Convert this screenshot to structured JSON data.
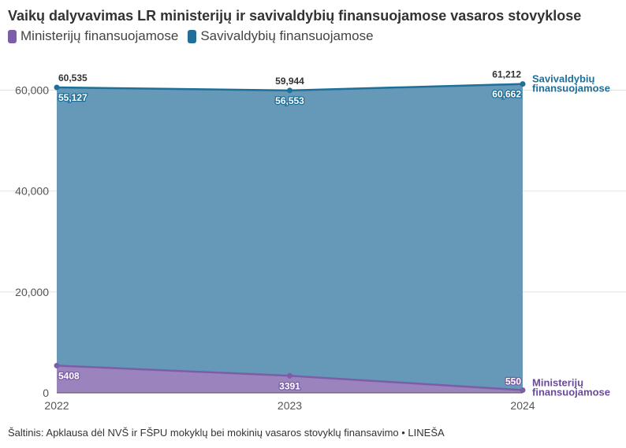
{
  "title": "Vaikų dalyvavimas LR ministerijų ir savivaldybių finansuojamose vasaros stovyklose",
  "legend": [
    {
      "label": "Ministerijų finansuojamose",
      "color": "#7b5ea7"
    },
    {
      "label": "Savivaldybių finansuojamose",
      "color": "#1f6f98"
    }
  ],
  "source": "Šaltinis: Apklausa dėl NVŠ ir FŠPU mokyklų bei mokinių vasaros stovyklų finansavimo • LINEŠA",
  "chart_data": {
    "type": "area",
    "stacked": true,
    "categories": [
      "2022",
      "2023",
      "2024"
    ],
    "series": [
      {
        "name": "Ministerijų finansuojamose",
        "values": [
          5408,
          3391,
          550
        ],
        "value_labels": [
          "5408",
          "3391",
          "550"
        ],
        "color": "#7b5ea7",
        "fill": "#9b84bd"
      },
      {
        "name": "Savivaldybių finansuojamose",
        "values": [
          55127,
          56553,
          60662
        ],
        "value_labels": [
          "55,127",
          "56,553",
          "60,662"
        ],
        "color": "#1f6f98",
        "fill": "#6698b8"
      }
    ],
    "totals": [
      60535,
      59944,
      61212
    ],
    "total_labels": [
      "60,535",
      "59,944",
      "61,212"
    ],
    "end_labels": [
      {
        "series": "Savivaldybių finansuojamose",
        "lines": [
          "Savivaldybių",
          "finansuojamose"
        ],
        "color": "#1f6f98"
      },
      {
        "series": "Ministerijų finansuojamose",
        "lines": [
          "Ministerijų",
          "finansuojamose"
        ],
        "color": "#6b4a9b"
      }
    ],
    "y_ticks": [
      0,
      20000,
      40000,
      60000
    ],
    "y_tick_labels": [
      "0",
      "20,000",
      "40,000",
      "60,000"
    ],
    "ylim": [
      0,
      66000
    ],
    "grid": true,
    "legend_position": "top-left"
  }
}
